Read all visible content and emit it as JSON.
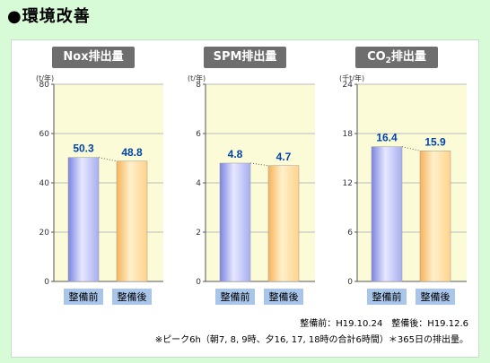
{
  "page_title": "●環境改善",
  "footnote_dates": "整備前：H19.10.24　整備後：H19.12.6",
  "footnote_method": "※ピーク6h（朝7, 8, 9時、夕16, 17, 18時の合計6時間）＊365日の排出量。",
  "colors": {
    "before_bar": "#a7aef0",
    "after_bar": "#ffd38a",
    "label_bg": "#a9c6ea",
    "value_text": "#0044aa",
    "plot_bg": "#fbfbd8"
  },
  "chart_data": [
    {
      "type": "bar",
      "title": "Nox排出量",
      "title_sub": "",
      "unit": "(t/年)",
      "categories": [
        "整備前",
        "整備後"
      ],
      "values": [
        50.3,
        48.8
      ],
      "value_labels": [
        "50.3",
        "48.8"
      ],
      "ylim": [
        0,
        80
      ],
      "yticks": [
        0,
        20,
        40,
        60,
        80
      ],
      "grid": true
    },
    {
      "type": "bar",
      "title": "SPM排出量",
      "title_sub": "",
      "unit": "(t/年)",
      "categories": [
        "整備前",
        "整備後"
      ],
      "values": [
        4.8,
        4.7
      ],
      "value_labels": [
        "4.8",
        "4.7"
      ],
      "ylim": [
        0,
        8
      ],
      "yticks": [
        0,
        2,
        4,
        6,
        8
      ],
      "grid": true
    },
    {
      "type": "bar",
      "title": "CO",
      "title_sub": "2",
      "title_suffix": "排出量",
      "unit": "(千t/年)",
      "categories": [
        "整備前",
        "整備後"
      ],
      "values": [
        16.4,
        15.9
      ],
      "value_labels": [
        "16.4",
        "15.9"
      ],
      "ylim": [
        0,
        24
      ],
      "yticks": [
        0,
        6,
        12,
        18,
        24
      ],
      "grid": true
    }
  ]
}
